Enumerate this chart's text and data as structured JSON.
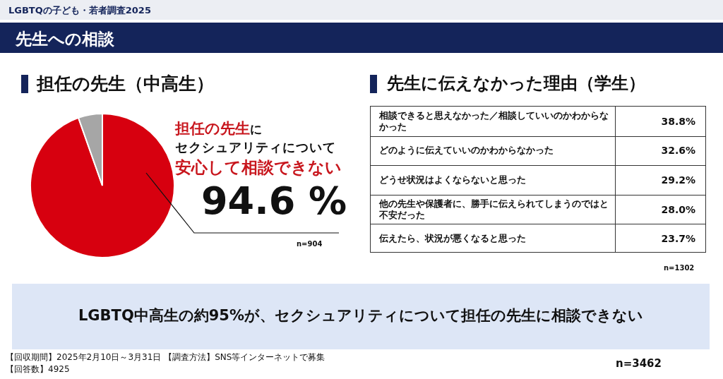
{
  "chart_data": [
    {
      "type": "other",
      "title": "LGBTQの子ども・若者調査2025",
      "subtitle": "先生への相談",
      "annotations": [
        "LGBTQ中高生の約95%が、セクシュアリティについて担任の先生に相談できない",
        "【回収期間】2025年2月10日～3月31日 【調査方法】SNS等インターネットで募集",
        "【回答数】4925",
        "n=3462"
      ]
    },
    {
      "type": "pie",
      "title": "担任の先生（中高生）",
      "categories": [
        null,
        null
      ],
      "values": [
        94.6,
        5.4
      ],
      "colors": [
        "#d7000f",
        "#a6a6a6"
      ],
      "value_labels": [
        "94.6 %",
        null
      ],
      "annotations": [
        "担任の先生",
        "に",
        "セクシュアリティについて",
        "安心して相談できない",
        "n=904"
      ]
    },
    {
      "type": "other",
      "title": "先生に伝えなかった理由（学生）",
      "categories": [
        "相談できると思えなかった／相談していいのかわからなかった",
        "どのように伝えていいのかわからなかった",
        "どうせ状況はよくならないと思った",
        "他の先生や保護者に、勝手に伝えられてしまうのではと不安だった",
        "伝えたら、状況が悪くなると思った"
      ],
      "value_labels": [
        "38.8%",
        "32.6%",
        "29.2%",
        "28.0%",
        "23.7%"
      ],
      "annotations": [
        "n=1302"
      ]
    }
  ]
}
